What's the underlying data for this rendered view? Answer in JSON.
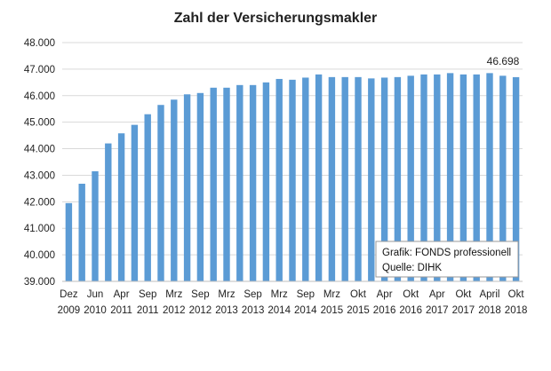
{
  "chart_data": {
    "type": "bar",
    "title": "Zahl der Versicherungsmakler",
    "xlabel": "",
    "ylabel": "",
    "ylim": [
      39000,
      48000
    ],
    "yticks": [
      "39.000",
      "40.000",
      "41.000",
      "42.000",
      "43.000",
      "44.000",
      "45.000",
      "46.000",
      "47.000",
      "48.000"
    ],
    "ytick_values": [
      39000,
      40000,
      41000,
      42000,
      43000,
      44000,
      45000,
      46000,
      47000,
      48000
    ],
    "grid": true,
    "color": "#5b9bd5",
    "x_labels": [
      {
        "index": 0,
        "month": "Dez",
        "year": "2009"
      },
      {
        "index": 2,
        "month": "Jun",
        "year": "2010"
      },
      {
        "index": 4,
        "month": "Apr",
        "year": "2011"
      },
      {
        "index": 6,
        "month": "Sep",
        "year": "2011"
      },
      {
        "index": 8,
        "month": "Mrz",
        "year": "2012"
      },
      {
        "index": 10,
        "month": "Sep",
        "year": "2012"
      },
      {
        "index": 12,
        "month": "Mrz",
        "year": "2013"
      },
      {
        "index": 14,
        "month": "Sep",
        "year": "2013"
      },
      {
        "index": 16,
        "month": "Mrz",
        "year": "2014"
      },
      {
        "index": 18,
        "month": "Sep",
        "year": "2014"
      },
      {
        "index": 20,
        "month": "Mrz",
        "year": "2015"
      },
      {
        "index": 22,
        "month": "Okt",
        "year": "2015"
      },
      {
        "index": 24,
        "month": "Apr",
        "year": "2016"
      },
      {
        "index": 26,
        "month": "Okt",
        "year": "2016"
      },
      {
        "index": 28,
        "month": "Apr",
        "year": "2017"
      },
      {
        "index": 30,
        "month": "Okt",
        "year": "2017"
      },
      {
        "index": 32,
        "month": "April",
        "year": "2018"
      },
      {
        "index": 34,
        "month": "Okt",
        "year": "2018"
      }
    ],
    "values": [
      41950,
      42680,
      43150,
      44200,
      44580,
      44900,
      45300,
      45650,
      45850,
      46050,
      46100,
      46300,
      46300,
      46400,
      46400,
      46500,
      46630,
      46600,
      46680,
      46800,
      46700,
      46700,
      46700,
      46650,
      46680,
      46700,
      46750,
      46800,
      46800,
      46850,
      46800,
      46800,
      46850,
      46750,
      46698
    ],
    "data_labels": [
      {
        "index": 34,
        "text": "46.698"
      }
    ],
    "annotation": {
      "line1": "Grafik: FONDS professionell",
      "line2": "Quelle: DIHK"
    }
  }
}
